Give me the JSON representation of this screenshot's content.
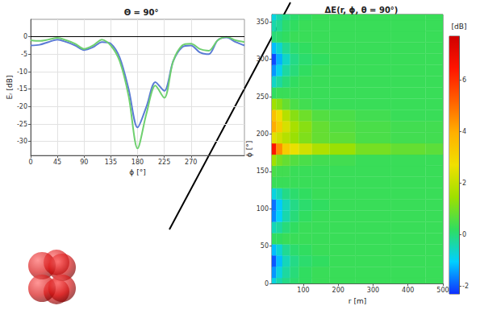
{
  "chart_data": [
    {
      "type": "line",
      "title": "Θ = 90°",
      "x_label": "ϕ [°]",
      "y_label": "Eᵣ [dB]",
      "x": [
        0,
        15,
        30,
        45,
        60,
        75,
        90,
        105,
        120,
        135,
        150,
        165,
        180,
        195,
        210,
        225,
        240,
        255,
        270,
        285,
        300,
        315,
        330,
        345,
        360
      ],
      "series": [
        {
          "color": "#5b7bd5",
          "values": [
            -2.5,
            -2.3,
            -1.5,
            -0.8,
            -1.5,
            -2.5,
            -3.8,
            -3,
            -1.5,
            -2,
            -6,
            -15,
            -26,
            -20,
            -13,
            -15.5,
            -7,
            -3,
            -2.5,
            -4.5,
            -5,
            -1,
            -0.2,
            -1.5,
            -2.5
          ]
        },
        {
          "color": "#6fd06f",
          "values": [
            -1,
            -1.2,
            -0.8,
            -0.3,
            -1,
            -2,
            -3.5,
            -2.5,
            -0.8,
            -2.5,
            -7,
            -17,
            -32,
            -22,
            -14,
            -17.5,
            -7,
            -2.5,
            -2,
            -3.5,
            -4,
            -1,
            0,
            -1,
            -1.5
          ]
        }
      ],
      "xlim": [
        0,
        360
      ],
      "xticks": [
        0,
        45,
        90,
        135,
        180,
        225,
        270
      ],
      "ylim": [
        -34,
        5
      ],
      "yticks": [
        -30,
        -25,
        -20,
        -15,
        -10,
        -5,
        0
      ],
      "grid": true,
      "hline": 0
    },
    {
      "type": "heatmap",
      "title": "ΔE(r, ϕ, θ = 90°)",
      "x_label": "r [m]",
      "y_label": "ϕ [°]",
      "x": [
        15,
        30,
        50,
        75,
        100,
        150,
        200,
        300,
        400,
        500
      ],
      "y": [
        0,
        15,
        30,
        45,
        60,
        75,
        90,
        105,
        120,
        135,
        150,
        165,
        180,
        195,
        210,
        225,
        240,
        255,
        270,
        285,
        300,
        315,
        330,
        345,
        360
      ],
      "cells": [
        [
          -0.8,
          -0.4,
          -0.1,
          0.1,
          0.2,
          0.3,
          0.3,
          0.3,
          0.3,
          0.3
        ],
        [
          -1.5,
          -0.8,
          -0.3,
          0,
          0.2,
          0.3,
          0.3,
          0.3,
          0.3,
          0.3
        ],
        [
          -2.0,
          -1.2,
          -0.5,
          -0.1,
          0.1,
          0.2,
          0.3,
          0.3,
          0.3,
          0.3
        ],
        [
          -1.2,
          -0.7,
          -0.2,
          0.1,
          0.2,
          0.3,
          0.3,
          0.3,
          0.3,
          0.3
        ],
        [
          0.2,
          0.2,
          0.3,
          0.3,
          0.3,
          0.3,
          0.3,
          0.3,
          0.3,
          0.3
        ],
        [
          -0.5,
          -0.3,
          0,
          0.2,
          0.3,
          0.3,
          0.3,
          0.3,
          0.3,
          0.3
        ],
        [
          -1.6,
          -1,
          -0.4,
          0,
          0.2,
          0.3,
          0.3,
          0.3,
          0.3,
          0.3
        ],
        [
          -1.8,
          -1.1,
          -0.5,
          -0.1,
          0.1,
          0.2,
          0.3,
          0.3,
          0.3,
          0.3
        ],
        [
          -0.8,
          -0.5,
          -0.1,
          0.1,
          0.2,
          0.3,
          0.3,
          0.3,
          0.3,
          0.3
        ],
        [
          0.3,
          0.3,
          0.3,
          0.3,
          0.3,
          0.3,
          0.3,
          0.3,
          0.3,
          0.3
        ],
        [
          0.5,
          0.4,
          0.4,
          0.3,
          0.3,
          0.3,
          0.3,
          0.3,
          0.3,
          0.3
        ],
        [
          1.5,
          1.0,
          0.8,
          0.6,
          0.5,
          0.4,
          0.4,
          0.3,
          0.3,
          0.3
        ],
        [
          6.5,
          4.5,
          3.2,
          2.6,
          2.2,
          1.7,
          1.4,
          1.0,
          0.8,
          0.7
        ],
        [
          2.5,
          2.2,
          1.8,
          1.4,
          1.1,
          0.8,
          0.7,
          0.5,
          0.4,
          0.4
        ],
        [
          4.0,
          3.2,
          2.3,
          1.6,
          1.2,
          0.8,
          0.6,
          0.5,
          0.4,
          0.4
        ],
        [
          3.5,
          2.8,
          1.8,
          1.2,
          0.9,
          0.6,
          0.5,
          0.4,
          0.3,
          0.3
        ],
        [
          1.5,
          1.2,
          0.8,
          0.5,
          0.4,
          0.3,
          0.3,
          0.3,
          0.3,
          0.3
        ],
        [
          0.2,
          0.3,
          0.3,
          0.3,
          0.3,
          0.3,
          0.3,
          0.3,
          0.3,
          0.3
        ],
        [
          -0.6,
          -0.3,
          0,
          0.2,
          0.3,
          0.3,
          0.3,
          0.3,
          0.3,
          0.3
        ],
        [
          -1.5,
          -0.9,
          -0.3,
          0,
          0.2,
          0.3,
          0.3,
          0.3,
          0.3,
          0.3
        ],
        [
          -2.1,
          -1.3,
          -0.6,
          -0.1,
          0.1,
          0.2,
          0.3,
          0.3,
          0.3,
          0.3
        ],
        [
          -1.2,
          -0.7,
          -0.2,
          0.1,
          0.2,
          0.3,
          0.3,
          0.3,
          0.3,
          0.3
        ],
        [
          0,
          0.1,
          0.2,
          0.3,
          0.3,
          0.3,
          0.3,
          0.3,
          0.3,
          0.3
        ],
        [
          -0.4,
          -0.2,
          0.1,
          0.2,
          0.3,
          0.3,
          0.3,
          0.3,
          0.3,
          0.3
        ],
        [
          -0.8,
          -0.4,
          -0.1,
          0.1,
          0.2,
          0.3,
          0.3,
          0.3,
          0.3,
          0.3
        ]
      ],
      "xlim": [
        10,
        500
      ],
      "xticks": [
        100,
        200,
        300,
        400,
        500
      ],
      "ylim": [
        0,
        360
      ],
      "yticks": [
        0,
        50,
        100,
        150,
        200,
        250,
        300,
        350
      ],
      "colorbar": {
        "label": "[dB]",
        "range": [
          -2.3,
          7.7
        ],
        "ticks": [
          -2,
          0,
          2,
          4,
          6
        ]
      }
    }
  ]
}
